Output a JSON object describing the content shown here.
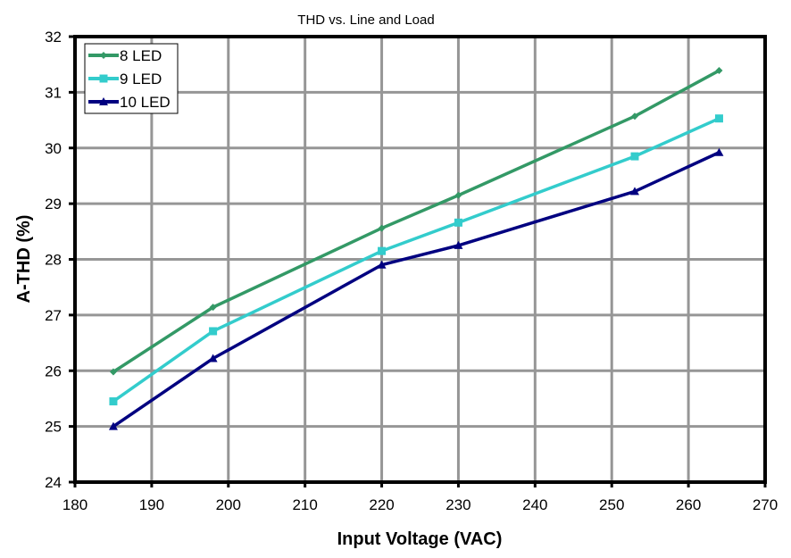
{
  "chart_data": {
    "type": "line",
    "title": "THD vs. Line and Load",
    "xlabel": "Input Voltage (VAC)",
    "ylabel": "A-THD (%)",
    "xlim": [
      180,
      270
    ],
    "ylim": [
      24,
      32
    ],
    "xticks": [
      "180",
      "190",
      "200",
      "210",
      "220",
      "230",
      "240",
      "250",
      "260",
      "270"
    ],
    "yticks": [
      "24",
      "25",
      "26",
      "27",
      "28",
      "29",
      "30",
      "31",
      "32"
    ],
    "grid": true,
    "legend_position": "top-left",
    "x": [
      185,
      198,
      220,
      230,
      253,
      264
    ],
    "series": [
      {
        "name": "8 LED",
        "color": "#339966",
        "marker": "diamond",
        "values": [
          25.98,
          27.14,
          28.56,
          29.15,
          30.57,
          31.39
        ]
      },
      {
        "name": "9 LED",
        "color": "#33CCCC",
        "marker": "square",
        "values": [
          25.45,
          26.71,
          28.15,
          28.66,
          29.85,
          30.53
        ]
      },
      {
        "name": "10 LED",
        "color": "#000080",
        "marker": "triangle",
        "values": [
          25.0,
          26.22,
          27.9,
          28.25,
          29.22,
          29.92
        ]
      }
    ]
  }
}
